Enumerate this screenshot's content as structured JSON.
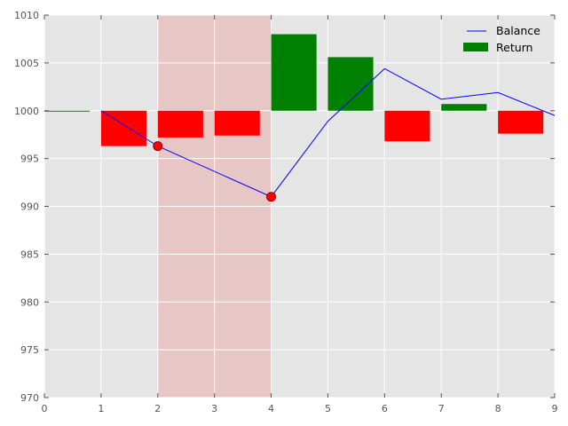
{
  "chart_data": {
    "type": "bar+line",
    "title": "",
    "xlabel": "",
    "ylabel": "",
    "xlim": [
      0,
      9
    ],
    "ylim": [
      970,
      1010
    ],
    "xticks": [
      0,
      1,
      2,
      3,
      4,
      5,
      6,
      7,
      8,
      9
    ],
    "yticks": [
      970,
      975,
      980,
      985,
      990,
      995,
      1000,
      1005,
      1010
    ],
    "grid": true,
    "legend_position": "top-right",
    "baseline": 1000,
    "shaded_region": {
      "x_start": 2,
      "x_end": 4,
      "color": "#e8a0a0"
    },
    "bars": {
      "name": "Return",
      "legend_color": "#008000",
      "positive_color": "#008000",
      "negative_color": "#ff0000",
      "width": 0.8,
      "x": [
        0,
        1,
        2,
        3,
        4,
        5,
        6,
        7,
        8
      ],
      "values": [
        0.0,
        -3.7,
        -2.8,
        -2.6,
        8.0,
        5.6,
        -3.2,
        0.7,
        -2.4
      ]
    },
    "line": {
      "name": "Balance",
      "color": "#0000ff",
      "x": [
        1,
        2,
        4,
        5,
        6,
        7,
        8,
        9
      ],
      "y": [
        1000.0,
        996.3,
        991.0,
        998.9,
        1004.4,
        1001.2,
        1001.9,
        999.5
      ]
    },
    "markers": {
      "color": "#ff0000",
      "edge_color": "#8b0000",
      "x": [
        2,
        4
      ],
      "y": [
        996.3,
        991.0
      ]
    }
  }
}
